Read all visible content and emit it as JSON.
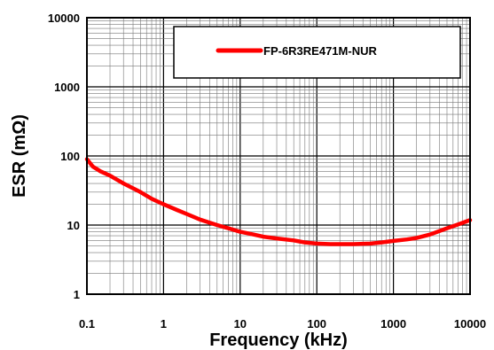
{
  "chart_data": {
    "type": "line",
    "xlabel": "Frequency  (kHz)",
    "ylabel": "ESR  (mΩ)",
    "x_scale": "log",
    "y_scale": "log",
    "xlim": [
      0.1,
      10000
    ],
    "ylim": [
      1,
      10000
    ],
    "grid": true,
    "legend_position": "top-right",
    "x_tick_labels": [
      "0.1",
      "1",
      "10",
      "100",
      "1000",
      "10000"
    ],
    "y_tick_labels": [
      "1",
      "10",
      "100",
      "1000",
      "10000"
    ],
    "series": [
      {
        "name": "FP-6R3RE471M-NUR",
        "color": "#ff0000",
        "x": [
          0.1,
          0.12,
          0.15,
          0.2,
          0.3,
          0.5,
          0.7,
          1,
          1.5,
          2,
          3,
          5,
          7,
          10,
          15,
          20,
          30,
          50,
          70,
          100,
          150,
          200,
          300,
          500,
          700,
          1000,
          1500,
          2000,
          3000,
          5000,
          7000,
          10000
        ],
        "y": [
          90,
          70,
          60,
          52,
          40,
          30,
          24,
          20,
          16.5,
          14.5,
          12,
          10,
          9,
          8,
          7.3,
          6.8,
          6.4,
          6.0,
          5.6,
          5.4,
          5.3,
          5.3,
          5.3,
          5.4,
          5.6,
          5.9,
          6.2,
          6.5,
          7.3,
          9.0,
          10.2,
          11.8
        ]
      }
    ]
  }
}
